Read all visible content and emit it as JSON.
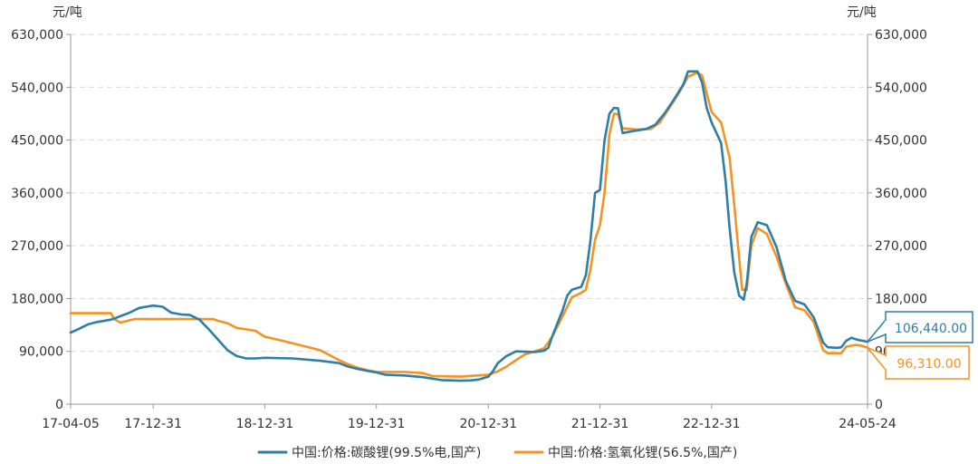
{
  "chart_data": {
    "type": "line",
    "left_unit": "元/吨",
    "right_unit": "元/吨",
    "y_ticks": [
      0,
      90000,
      180000,
      270000,
      360000,
      450000,
      540000,
      630000
    ],
    "y_tick_labels": [
      "0",
      "90,000",
      "180,000",
      "270,000",
      "360,000",
      "450,000",
      "540,000",
      "630,000"
    ],
    "ylim": [
      0,
      630000
    ],
    "xlim": [
      "2017-04-05",
      "2024-05-24"
    ],
    "x_ticks": [
      "2017-04-05",
      "2017-12-31",
      "2018-12-31",
      "2019-12-31",
      "2020-12-31",
      "2021-12-31",
      "2022-12-31",
      "2024-05-24"
    ],
    "x_tick_labels": [
      "17-04-05",
      "17-12-31",
      "18-12-31",
      "19-12-31",
      "20-12-31",
      "21-12-31",
      "22-12-31",
      "24-05-24"
    ],
    "grid": true,
    "legend_position": "bottom",
    "series": [
      {
        "name": "中国:价格:碳酸锂(99.5%电,国产)",
        "color": "#2e7ea6",
        "last_value_label": "106,440.00",
        "points": [
          [
            "2017-04-05",
            122000
          ],
          [
            "2017-05-01",
            128000
          ],
          [
            "2017-06-01",
            136000
          ],
          [
            "2017-07-01",
            140000
          ],
          [
            "2017-08-15",
            144000
          ],
          [
            "2017-09-15",
            150000
          ],
          [
            "2017-10-15",
            156000
          ],
          [
            "2017-11-15",
            164000
          ],
          [
            "2017-12-31",
            168000
          ],
          [
            "2018-01-31",
            166000
          ],
          [
            "2018-02-28",
            156000
          ],
          [
            "2018-03-31",
            153000
          ],
          [
            "2018-04-30",
            152000
          ],
          [
            "2018-05-31",
            144000
          ],
          [
            "2018-06-30",
            128000
          ],
          [
            "2018-07-31",
            110000
          ],
          [
            "2018-08-31",
            92000
          ],
          [
            "2018-09-30",
            82000
          ],
          [
            "2018-10-31",
            78000
          ],
          [
            "2018-11-30",
            78000
          ],
          [
            "2018-12-31",
            79000
          ],
          [
            "2019-03-31",
            78000
          ],
          [
            "2019-06-30",
            74000
          ],
          [
            "2019-08-31",
            70000
          ],
          [
            "2019-09-30",
            64000
          ],
          [
            "2019-10-31",
            60000
          ],
          [
            "2019-11-30",
            57000
          ],
          [
            "2019-12-31",
            54000
          ],
          [
            "2020-01-31",
            50000
          ],
          [
            "2020-03-31",
            49000
          ],
          [
            "2020-05-31",
            46000
          ],
          [
            "2020-07-31",
            41000
          ],
          [
            "2020-09-30",
            40000
          ],
          [
            "2020-10-31",
            40500
          ],
          [
            "2020-11-30",
            42000
          ],
          [
            "2020-12-31",
            47000
          ],
          [
            "2021-01-15",
            56000
          ],
          [
            "2021-01-31",
            70000
          ],
          [
            "2021-02-28",
            82000
          ],
          [
            "2021-03-31",
            90000
          ],
          [
            "2021-05-31",
            89000
          ],
          [
            "2021-06-30",
            91000
          ],
          [
            "2021-07-15",
            96000
          ],
          [
            "2021-07-31",
            120000
          ],
          [
            "2021-08-31",
            160000
          ],
          [
            "2021-09-15",
            185000
          ],
          [
            "2021-09-30",
            195000
          ],
          [
            "2021-10-31",
            200000
          ],
          [
            "2021-11-15",
            220000
          ],
          [
            "2021-11-30",
            280000
          ],
          [
            "2021-12-15",
            360000
          ],
          [
            "2021-12-31",
            365000
          ],
          [
            "2022-01-15",
            450000
          ],
          [
            "2022-01-31",
            495000
          ],
          [
            "2022-02-15",
            505000
          ],
          [
            "2022-02-28",
            504000
          ],
          [
            "2022-03-15",
            462000
          ],
          [
            "2022-04-15",
            465000
          ],
          [
            "2022-05-31",
            469000
          ],
          [
            "2022-06-30",
            476000
          ],
          [
            "2022-07-31",
            496000
          ],
          [
            "2022-08-31",
            520000
          ],
          [
            "2022-09-30",
            545000
          ],
          [
            "2022-10-15",
            567000
          ],
          [
            "2022-11-15",
            567000
          ],
          [
            "2022-11-30",
            548000
          ],
          [
            "2022-12-15",
            505000
          ],
          [
            "2022-12-31",
            480000
          ],
          [
            "2023-01-31",
            445000
          ],
          [
            "2023-02-15",
            380000
          ],
          [
            "2023-02-28",
            300000
          ],
          [
            "2023-03-15",
            225000
          ],
          [
            "2023-03-31",
            185000
          ],
          [
            "2023-04-15",
            178000
          ],
          [
            "2023-04-25",
            205000
          ],
          [
            "2023-05-10",
            285000
          ],
          [
            "2023-05-31",
            310000
          ],
          [
            "2023-06-30",
            305000
          ],
          [
            "2023-07-31",
            268000
          ],
          [
            "2023-08-31",
            210000
          ],
          [
            "2023-09-30",
            176000
          ],
          [
            "2023-10-31",
            170000
          ],
          [
            "2023-11-30",
            148000
          ],
          [
            "2023-12-31",
            105000
          ],
          [
            "2024-01-15",
            97000
          ],
          [
            "2024-02-15",
            96000
          ],
          [
            "2024-02-28",
            97000
          ],
          [
            "2024-03-15",
            108000
          ],
          [
            "2024-04-01",
            113000
          ],
          [
            "2024-04-20",
            110000
          ],
          [
            "2024-05-24",
            106440
          ]
        ]
      },
      {
        "name": "中国:价格:氢氧化锂(56.5%,国产)",
        "color": "#f59222",
        "last_value_label": "96,310.00",
        "points": [
          [
            "2017-04-05",
            155000
          ],
          [
            "2017-08-15",
            155000
          ],
          [
            "2017-08-25",
            145000
          ],
          [
            "2017-09-15",
            139000
          ],
          [
            "2017-10-15",
            143000
          ],
          [
            "2017-11-01",
            145000
          ],
          [
            "2017-12-31",
            145000
          ],
          [
            "2018-03-31",
            145000
          ],
          [
            "2018-05-31",
            145000
          ],
          [
            "2018-07-15",
            145000
          ],
          [
            "2018-07-31",
            142000
          ],
          [
            "2018-08-31",
            138000
          ],
          [
            "2018-09-30",
            130000
          ],
          [
            "2018-11-30",
            125000
          ],
          [
            "2018-12-31",
            115000
          ],
          [
            "2019-02-28",
            108000
          ],
          [
            "2019-04-30",
            100000
          ],
          [
            "2019-06-30",
            92000
          ],
          [
            "2019-08-31",
            75000
          ],
          [
            "2019-09-30",
            68000
          ],
          [
            "2019-10-31",
            62000
          ],
          [
            "2019-11-30",
            58000
          ],
          [
            "2019-12-31",
            55000
          ],
          [
            "2020-03-31",
            55000
          ],
          [
            "2020-05-31",
            53000
          ],
          [
            "2020-06-30",
            48000
          ],
          [
            "2020-09-30",
            47000
          ],
          [
            "2020-12-31",
            50000
          ],
          [
            "2021-01-31",
            56000
          ],
          [
            "2021-02-28",
            64000
          ],
          [
            "2021-03-31",
            75000
          ],
          [
            "2021-04-30",
            85000
          ],
          [
            "2021-05-31",
            90000
          ],
          [
            "2021-06-30",
            95000
          ],
          [
            "2021-07-15",
            105000
          ],
          [
            "2021-07-31",
            118000
          ],
          [
            "2021-08-31",
            150000
          ],
          [
            "2021-09-30",
            182000
          ],
          [
            "2021-10-31",
            190000
          ],
          [
            "2021-11-15",
            195000
          ],
          [
            "2021-11-30",
            230000
          ],
          [
            "2021-12-15",
            280000
          ],
          [
            "2021-12-31",
            305000
          ],
          [
            "2022-01-15",
            360000
          ],
          [
            "2022-01-31",
            460000
          ],
          [
            "2022-02-15",
            495000
          ],
          [
            "2022-02-28",
            494000
          ],
          [
            "2022-03-15",
            470000
          ],
          [
            "2022-04-30",
            468000
          ],
          [
            "2022-06-15",
            469000
          ],
          [
            "2022-07-15",
            480000
          ],
          [
            "2022-08-15",
            505000
          ],
          [
            "2022-09-15",
            530000
          ],
          [
            "2022-10-15",
            558000
          ],
          [
            "2022-11-15",
            565000
          ],
          [
            "2022-11-30",
            560000
          ],
          [
            "2022-12-15",
            530000
          ],
          [
            "2022-12-31",
            498000
          ],
          [
            "2023-01-31",
            480000
          ],
          [
            "2023-02-28",
            420000
          ],
          [
            "2023-03-15",
            340000
          ],
          [
            "2023-03-31",
            250000
          ],
          [
            "2023-04-10",
            195000
          ],
          [
            "2023-04-25",
            195000
          ],
          [
            "2023-05-10",
            270000
          ],
          [
            "2023-05-31",
            300000
          ],
          [
            "2023-06-30",
            290000
          ],
          [
            "2023-07-31",
            252000
          ],
          [
            "2023-08-31",
            205000
          ],
          [
            "2023-09-30",
            165000
          ],
          [
            "2023-10-31",
            160000
          ],
          [
            "2023-11-30",
            140000
          ],
          [
            "2023-12-31",
            92000
          ],
          [
            "2024-01-15",
            87000
          ],
          [
            "2024-02-28",
            87000
          ],
          [
            "2024-03-15",
            98000
          ],
          [
            "2024-04-15",
            101000
          ],
          [
            "2024-05-01",
            100000
          ],
          [
            "2024-05-24",
            96310
          ]
        ]
      }
    ]
  }
}
